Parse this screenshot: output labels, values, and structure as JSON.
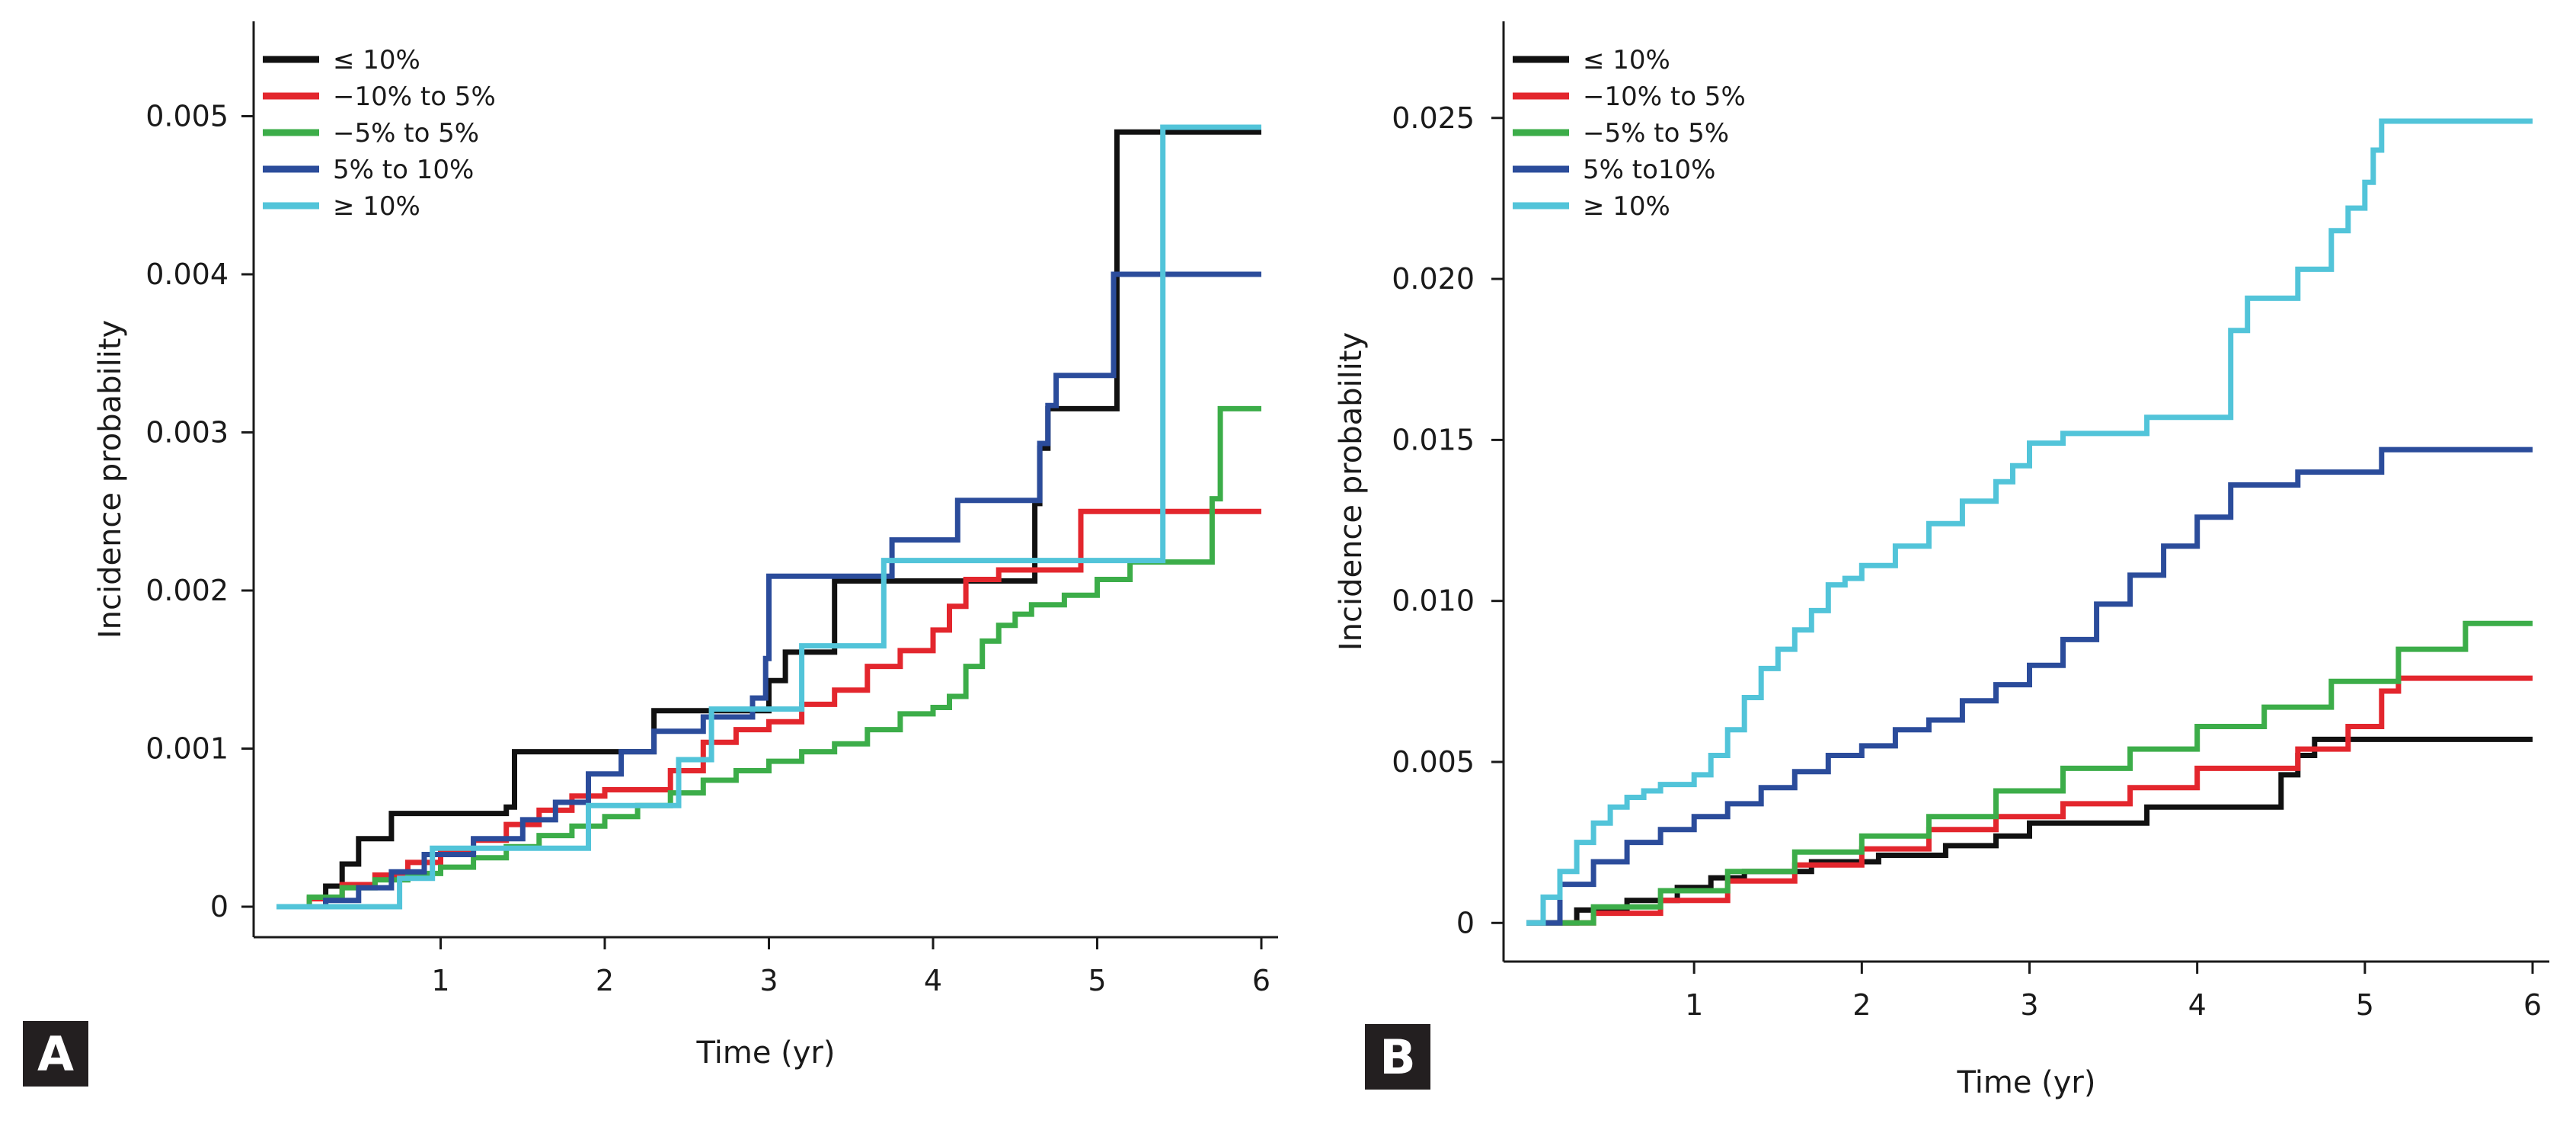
{
  "chart_data": [
    {
      "panel": "A",
      "type": "line",
      "step": true,
      "xlabel": "Time (yr)",
      "ylabel": "Incidence probability",
      "xlim": [
        0,
        6.0
      ],
      "ylim": [
        0,
        0.0056
      ],
      "xticks": [
        1,
        2,
        3,
        4,
        5,
        6
      ],
      "xtick_labels": [
        "1",
        "2",
        "3",
        "4",
        "5",
        "6"
      ],
      "yticks": [
        0,
        0.001,
        0.002,
        0.003,
        0.004,
        0.005
      ],
      "ytick_labels": [
        "0",
        "0.001",
        "0.002",
        "0.003",
        "0.004",
        "0.005"
      ],
      "legend_position": "top-left",
      "series": [
        {
          "name": "≤ 10%",
          "color": "#111111",
          "x": [
            0,
            0.3,
            0.4,
            0.5,
            0.6,
            0.7,
            1.4,
            1.45,
            2.3,
            2.5,
            3.0,
            3.1,
            3.4,
            4.6,
            4.62,
            4.65,
            4.7,
            4.75,
            5.1,
            5.12,
            6.0
          ],
          "y": [
            0,
            0.00013,
            0.00027,
            0.00043,
            0.00043,
            0.00059,
            0.00063,
            0.00098,
            0.00124,
            0.00124,
            0.00143,
            0.00161,
            0.00206,
            0.00206,
            0.00255,
            0.0029,
            0.00315,
            0.00315,
            0.00315,
            0.0049,
            0.0049
          ]
        },
        {
          "name": "−10% to 5%",
          "color": "#e3262d",
          "x": [
            0,
            0.2,
            0.4,
            0.6,
            0.8,
            1.0,
            1.2,
            1.4,
            1.6,
            1.8,
            2.0,
            2.2,
            2.4,
            2.6,
            2.8,
            3.0,
            3.2,
            3.4,
            3.6,
            3.8,
            4.0,
            4.1,
            4.2,
            4.4,
            4.8,
            4.9,
            6.0
          ],
          "y": [
            0,
            5e-05,
            0.00014,
            0.0002,
            0.00028,
            0.00035,
            0.00042,
            0.00052,
            0.00061,
            0.0007,
            0.00074,
            0.00074,
            0.00086,
            0.00104,
            0.00112,
            0.00117,
            0.00128,
            0.00137,
            0.00152,
            0.00162,
            0.00175,
            0.0019,
            0.00207,
            0.00213,
            0.00213,
            0.0025,
            0.0025
          ]
        },
        {
          "name": "−5% to 5%",
          "color": "#3cad49",
          "x": [
            0,
            0.2,
            0.4,
            0.6,
            0.8,
            1.0,
            1.2,
            1.4,
            1.6,
            1.8,
            2.0,
            2.2,
            2.4,
            2.6,
            2.8,
            3.0,
            3.2,
            3.4,
            3.6,
            3.8,
            4.0,
            4.1,
            4.2,
            4.3,
            4.4,
            4.5,
            4.6,
            4.8,
            5.0,
            5.2,
            5.6,
            5.7,
            5.75,
            6.0
          ],
          "y": [
            0,
            6e-05,
            0.00012,
            0.00017,
            0.00021,
            0.00025,
            0.00031,
            0.00038,
            0.00045,
            0.00051,
            0.00057,
            0.00064,
            0.00072,
            0.0008,
            0.00086,
            0.00092,
            0.00098,
            0.00103,
            0.00112,
            0.00122,
            0.00126,
            0.00133,
            0.00152,
            0.00168,
            0.00178,
            0.00185,
            0.00191,
            0.00197,
            0.00207,
            0.00218,
            0.00218,
            0.00258,
            0.00315,
            0.00315
          ]
        },
        {
          "name": "5% to 10%",
          "color": "#2b4c9b",
          "x": [
            0,
            0.3,
            0.5,
            0.7,
            0.9,
            1.2,
            1.5,
            1.7,
            1.9,
            2.1,
            2.3,
            2.6,
            2.9,
            2.98,
            3.0,
            3.5,
            3.75,
            4.0,
            4.15,
            4.6,
            4.65,
            4.7,
            4.75,
            5.0,
            5.1,
            6.0
          ],
          "y": [
            0,
            4e-05,
            0.00012,
            0.00022,
            0.00033,
            0.00043,
            0.00055,
            0.00066,
            0.00084,
            0.00098,
            0.00111,
            0.0012,
            0.00132,
            0.00157,
            0.00209,
            0.00209,
            0.00232,
            0.00232,
            0.00257,
            0.00257,
            0.00293,
            0.00317,
            0.00336,
            0.00336,
            0.004,
            0.004
          ]
        },
        {
          "name": "≥ 10%",
          "color": "#52c4d9",
          "x": [
            0,
            0.7,
            0.75,
            0.95,
            1.85,
            1.9,
            2.4,
            2.45,
            2.65,
            3.15,
            3.2,
            3.6,
            3.7,
            5.35,
            5.4,
            6.0
          ],
          "y": [
            0,
            0,
            0.00018,
            0.00037,
            0.00037,
            0.00064,
            0.00064,
            0.00093,
            0.00125,
            0.00125,
            0.00165,
            0.00165,
            0.00219,
            0.00219,
            0.00493,
            0.00493
          ]
        }
      ]
    },
    {
      "panel": "B",
      "type": "line",
      "step": true,
      "xlabel": "Time (yr)",
      "ylabel": "Incidence probability",
      "xlim": [
        0,
        6.0
      ],
      "ylim": [
        -0.0012,
        0.028
      ],
      "xticks": [
        1,
        2,
        3,
        4,
        5,
        6
      ],
      "xtick_labels": [
        "1",
        "2",
        "3",
        "4",
        "5",
        "6"
      ],
      "yticks": [
        0,
        0.005,
        0.01,
        0.015,
        0.02,
        0.025
      ],
      "ytick_labels": [
        "0",
        "0.005",
        "0.010",
        "0.015",
        "0.020",
        "0.025"
      ],
      "legend_position": "top-left",
      "series": [
        {
          "name": "≤ 10%",
          "color": "#111111",
          "x": [
            0,
            0.3,
            0.6,
            0.9,
            1.1,
            1.3,
            1.7,
            2.1,
            2.5,
            2.8,
            3.0,
            3.4,
            3.7,
            4.5,
            4.6,
            4.7,
            6.0
          ],
          "y": [
            0,
            0.0004,
            0.0007,
            0.0011,
            0.0014,
            0.0016,
            0.0019,
            0.0021,
            0.0024,
            0.0027,
            0.0031,
            0.0031,
            0.0036,
            0.0046,
            0.0052,
            0.0057,
            0.0057
          ]
        },
        {
          "name": "−10% to 5%",
          "color": "#e3262d",
          "x": [
            0,
            0.4,
            0.8,
            1.2,
            1.6,
            2.0,
            2.4,
            2.8,
            3.2,
            3.6,
            4.0,
            4.6,
            4.9,
            5.1,
            5.2,
            6.0
          ],
          "y": [
            0,
            0.0003,
            0.0007,
            0.0013,
            0.0018,
            0.0023,
            0.0029,
            0.0033,
            0.0037,
            0.0042,
            0.0048,
            0.0054,
            0.0061,
            0.0072,
            0.0076,
            0.0076
          ]
        },
        {
          "name": "−5% to 5%",
          "color": "#3cad49",
          "x": [
            0,
            0.4,
            0.8,
            1.2,
            1.6,
            2.0,
            2.4,
            2.8,
            3.2,
            3.6,
            4.0,
            4.4,
            4.8,
            5.2,
            5.6,
            6.0
          ],
          "y": [
            0,
            0.0005,
            0.001,
            0.0016,
            0.0022,
            0.0027,
            0.0033,
            0.0041,
            0.0048,
            0.0054,
            0.0061,
            0.0067,
            0.0075,
            0.0085,
            0.0093,
            0.0093
          ]
        },
        {
          "name": "5% to10%",
          "color": "#2b4c9b",
          "x": [
            0,
            0.2,
            0.4,
            0.6,
            0.8,
            1.0,
            1.2,
            1.4,
            1.6,
            1.8,
            2.0,
            2.2,
            2.4,
            2.6,
            2.8,
            3.0,
            3.2,
            3.4,
            3.6,
            3.8,
            4.0,
            4.2,
            4.6,
            5.0,
            5.1,
            6.0
          ],
          "y": [
            0,
            0.0012,
            0.0019,
            0.0025,
            0.0029,
            0.0033,
            0.0037,
            0.0042,
            0.0047,
            0.0052,
            0.0055,
            0.006,
            0.0063,
            0.0069,
            0.0074,
            0.008,
            0.0088,
            0.0099,
            0.0108,
            0.0117,
            0.0126,
            0.0136,
            0.014,
            0.014,
            0.0147,
            0.0147
          ]
        },
        {
          "name": "≥ 10%",
          "color": "#52c4d9",
          "x": [
            0,
            0.1,
            0.2,
            0.3,
            0.4,
            0.5,
            0.6,
            0.7,
            0.8,
            1.0,
            1.1,
            1.2,
            1.3,
            1.4,
            1.5,
            1.6,
            1.7,
            1.8,
            1.9,
            2.0,
            2.2,
            2.4,
            2.6,
            2.8,
            2.9,
            3.0,
            3.2,
            3.6,
            3.7,
            4.1,
            4.2,
            4.3,
            4.6,
            4.8,
            4.9,
            5.0,
            5.05,
            5.1,
            5.2,
            6.0
          ],
          "y": [
            0,
            0.0008,
            0.0016,
            0.0025,
            0.0031,
            0.0036,
            0.0039,
            0.0041,
            0.0043,
            0.0046,
            0.0052,
            0.006,
            0.007,
            0.0079,
            0.0085,
            0.0091,
            0.0097,
            0.0105,
            0.0107,
            0.0111,
            0.0117,
            0.0124,
            0.0131,
            0.0137,
            0.0142,
            0.0149,
            0.0152,
            0.0152,
            0.0157,
            0.0157,
            0.0184,
            0.0194,
            0.0203,
            0.0215,
            0.0222,
            0.023,
            0.024,
            0.0249,
            0.0249,
            0.0249
          ]
        }
      ]
    }
  ],
  "panels": {
    "a": {
      "badge": "A"
    },
    "b": {
      "badge": "B"
    }
  }
}
